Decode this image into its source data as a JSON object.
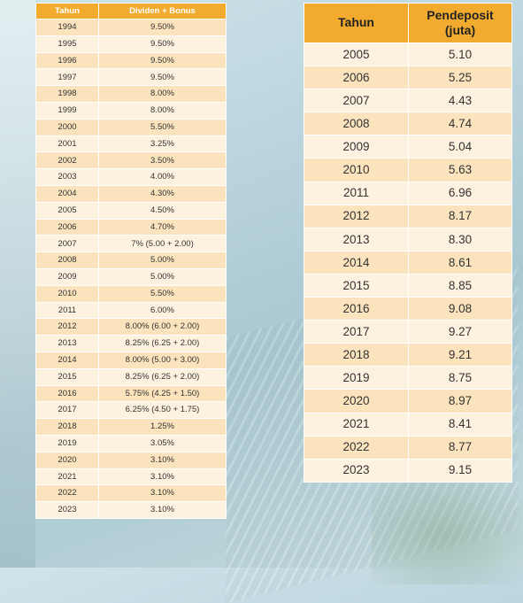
{
  "dividend_table": {
    "headers": {
      "year": "Tahun",
      "dividend": "Dividen + Bonus"
    },
    "rows": [
      [
        "1994",
        "9.50%"
      ],
      [
        "1995",
        "9.50%"
      ],
      [
        "1996",
        "9.50%"
      ],
      [
        "1997",
        "9.50%"
      ],
      [
        "1998",
        "8.00%"
      ],
      [
        "1999",
        "8.00%"
      ],
      [
        "2000",
        "5.50%"
      ],
      [
        "2001",
        "3.25%"
      ],
      [
        "2002",
        "3.50%"
      ],
      [
        "2003",
        "4.00%"
      ],
      [
        "2004",
        "4.30%"
      ],
      [
        "2005",
        "4.50%"
      ],
      [
        "2006",
        "4.70%"
      ],
      [
        "2007",
        "7% (5.00 + 2.00)"
      ],
      [
        "2008",
        "5.00%"
      ],
      [
        "2009",
        "5.00%"
      ],
      [
        "2010",
        "5.50%"
      ],
      [
        "2011",
        "6.00%"
      ],
      [
        "2012",
        "8.00% (6.00 + 2.00)"
      ],
      [
        "2013",
        "8.25% (6.25 + 2.00)"
      ],
      [
        "2014",
        "8.00% (5.00 + 3.00)"
      ],
      [
        "2015",
        "8.25% (6.25 + 2.00)"
      ],
      [
        "2016",
        "5.75% (4.25 + 1.50)"
      ],
      [
        "2017",
        "6.25% (4.50 + 1.75)"
      ],
      [
        "2018",
        "1.25%"
      ],
      [
        "2019",
        "3.05%"
      ],
      [
        "2020",
        "3.10%"
      ],
      [
        "2021",
        "3.10%"
      ],
      [
        "2022",
        "3.10%"
      ],
      [
        "2023",
        "3.10%"
      ]
    ]
  },
  "depositor_table": {
    "headers": {
      "year": "Tahun",
      "depositor_line1": "Pendeposit",
      "depositor_line2": "(juta)"
    },
    "rows": [
      [
        "2005",
        "5.10"
      ],
      [
        "2006",
        "5.25"
      ],
      [
        "2007",
        "4.43"
      ],
      [
        "2008",
        "4.74"
      ],
      [
        "2009",
        "5.04"
      ],
      [
        "2010",
        "5.63"
      ],
      [
        "2011",
        "6.96"
      ],
      [
        "2012",
        "8.17"
      ],
      [
        "2013",
        "8.30"
      ],
      [
        "2014",
        "8.61"
      ],
      [
        "2015",
        "8.85"
      ],
      [
        "2016",
        "9.08"
      ],
      [
        "2017",
        "9.27"
      ],
      [
        "2018",
        "9.21"
      ],
      [
        "2019",
        "8.75"
      ],
      [
        "2020",
        "8.97"
      ],
      [
        "2021",
        "8.41"
      ],
      [
        "2022",
        "8.77"
      ],
      [
        "2023",
        "9.15"
      ]
    ]
  },
  "colors": {
    "header": "#f2ab2e",
    "row_dark": "#fbe4bd",
    "row_light": "#fdf2df"
  }
}
